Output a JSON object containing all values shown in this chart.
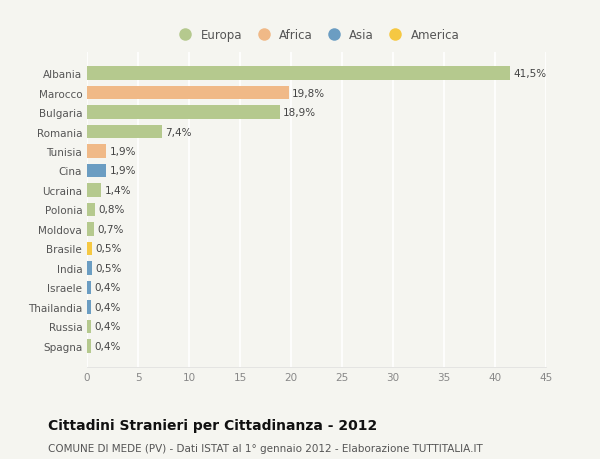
{
  "categories": [
    "Albania",
    "Marocco",
    "Bulgaria",
    "Romania",
    "Tunisia",
    "Cina",
    "Ucraina",
    "Polonia",
    "Moldova",
    "Brasile",
    "India",
    "Israele",
    "Thailandia",
    "Russia",
    "Spagna"
  ],
  "values": [
    41.5,
    19.8,
    18.9,
    7.4,
    1.9,
    1.9,
    1.4,
    0.8,
    0.7,
    0.5,
    0.5,
    0.4,
    0.4,
    0.4,
    0.4
  ],
  "labels": [
    "41,5%",
    "19,8%",
    "18,9%",
    "7,4%",
    "1,9%",
    "1,9%",
    "1,4%",
    "0,8%",
    "0,7%",
    "0,5%",
    "0,5%",
    "0,4%",
    "0,4%",
    "0,4%",
    "0,4%"
  ],
  "continents": [
    "Europa",
    "Africa",
    "Europa",
    "Europa",
    "Africa",
    "Asia",
    "Europa",
    "Europa",
    "Europa",
    "America",
    "Asia",
    "Asia",
    "Asia",
    "Europa",
    "Europa"
  ],
  "continent_colors": {
    "Europa": "#b5c98e",
    "Africa": "#f0b987",
    "Asia": "#6b9dc2",
    "America": "#f5c842"
  },
  "legend_order": [
    "Europa",
    "Africa",
    "Asia",
    "America"
  ],
  "legend_colors": [
    "#b5c98e",
    "#f0b987",
    "#6b9dc2",
    "#f5c842"
  ],
  "xlim": [
    0,
    45
  ],
  "xticks": [
    0,
    5,
    10,
    15,
    20,
    25,
    30,
    35,
    40,
    45
  ],
  "title": "Cittadini Stranieri per Cittadinanza - 2012",
  "subtitle": "COMUNE DI MEDE (PV) - Dati ISTAT al 1° gennaio 2012 - Elaborazione TUTTITALIA.IT",
  "bg_color": "#f5f5f0",
  "bar_height": 0.7,
  "grid_color": "#ffffff",
  "label_fontsize": 7.5,
  "tick_fontsize": 7.5,
  "ytick_fontsize": 7.5,
  "title_fontsize": 10,
  "subtitle_fontsize": 7.5
}
